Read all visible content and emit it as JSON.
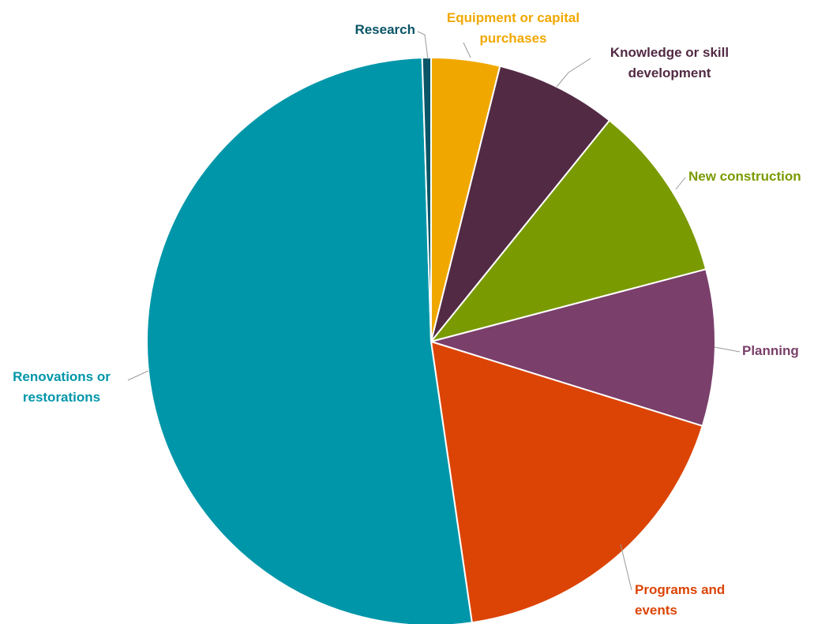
{
  "chart_data": {
    "type": "pie",
    "start_angle_deg": 0,
    "direction": "clockwise",
    "slices": [
      {
        "label": [
          "Equipment or capital",
          "purchases"
        ],
        "value": 3.9,
        "color": "#f0a800"
      },
      {
        "label": [
          "Knowledge or skill",
          "development"
        ],
        "value": 6.9,
        "color": "#522a44"
      },
      {
        "label": [
          "New construction"
        ],
        "value": 10.1,
        "color": "#7a9a01"
      },
      {
        "label": [
          "Planning"
        ],
        "value": 8.9,
        "color": "#7a3f6a"
      },
      {
        "label": [
          "Programs and",
          "events"
        ],
        "value": 17.9,
        "color": "#dc4405"
      },
      {
        "label": [
          "Renovations or",
          "restorations"
        ],
        "value": 51.8,
        "color": "#0096a9"
      },
      {
        "label": [
          "Research"
        ],
        "value": 0.5,
        "color": "#0a5566"
      }
    ]
  }
}
